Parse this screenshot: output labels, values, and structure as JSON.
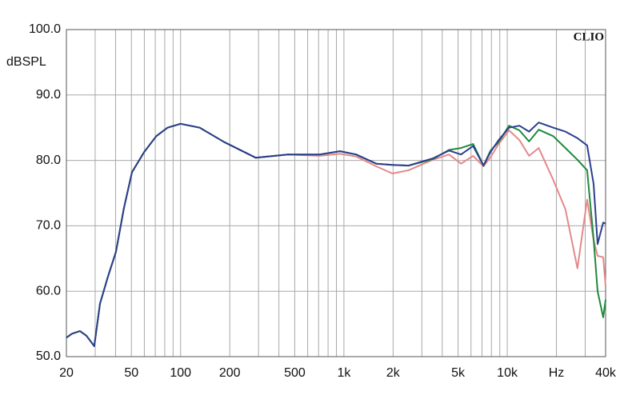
{
  "chart_data": {
    "type": "line",
    "annotation": "CLIO",
    "ylabel": "dBSPL",
    "log_x": true,
    "grid": true,
    "x": [
      20,
      21.6,
      24.2,
      26.5,
      29.6,
      32.1,
      36,
      40.2,
      45,
      50.4,
      59.9,
      71,
      83.2,
      100,
      131,
      185,
      289,
      453,
      711,
      946,
      1187,
      1577,
      1980,
      2486,
      3500,
      4394,
      5211,
      6180,
      7160,
      7900,
      8860,
      10260,
      11880,
      13600,
      15580,
      19140,
      22700,
      26900,
      30820,
      33760,
      35730,
      38660,
      40000
    ],
    "series": [
      {
        "color": "#e4898a",
        "values": [
          52.9,
          53.5,
          53.9,
          53.2,
          51.6,
          58.1,
          62.3,
          66,
          72.7,
          78.2,
          81.3,
          83.7,
          85,
          85.6,
          85,
          82.8,
          80.4,
          80.9,
          80.7,
          81,
          80.6,
          79.1,
          78,
          78.5,
          80.1,
          80.9,
          79.5,
          80.7,
          79.1,
          80.5,
          82.5,
          84.6,
          83.1,
          80.7,
          81.9,
          77,
          72.5,
          63.5,
          74,
          67.8,
          65.4,
          65.2,
          60.8
        ]
      },
      {
        "color": "#1e8a3c",
        "values": [
          52.9,
          53.5,
          53.9,
          53.2,
          51.6,
          58.1,
          62.3,
          66,
          72.7,
          78.2,
          81.3,
          83.7,
          85,
          85.6,
          85,
          82.8,
          80.4,
          80.9,
          80.9,
          81.4,
          80.9,
          79.5,
          79.3,
          79.2,
          80.2,
          81.6,
          81.9,
          82.5,
          79.2,
          81.5,
          82.8,
          85.3,
          84.6,
          82.9,
          84.7,
          83.7,
          81.9,
          80.1,
          78.5,
          68,
          60,
          56,
          58.7
        ]
      },
      {
        "color": "#2b3f8e",
        "values": [
          52.9,
          53.5,
          53.9,
          53.2,
          51.6,
          58.1,
          62.3,
          66,
          72.7,
          78.2,
          81.3,
          83.7,
          85,
          85.6,
          85,
          82.8,
          80.4,
          80.9,
          80.9,
          81.4,
          80.9,
          79.5,
          79.3,
          79.2,
          80.3,
          81.5,
          80.9,
          82.2,
          79.2,
          81.3,
          83.1,
          85,
          85.3,
          84.4,
          85.8,
          85,
          84.4,
          83.4,
          82.3,
          76.4,
          67.2,
          70.5,
          70.3
        ]
      }
    ],
    "xlim": [
      20,
      40000
    ],
    "xticks": [
      20,
      50,
      100,
      200,
      500,
      {
        "value": 1000,
        "label": "1k"
      },
      {
        "value": 2000,
        "label": "2k"
      },
      {
        "value": 5000,
        "label": "5k"
      },
      {
        "value": 10000,
        "label": "10k"
      },
      {
        "value": 20000,
        "label": "Hz"
      },
      {
        "value": 40000,
        "label": "40k"
      }
    ],
    "xminorticks": [
      30,
      40,
      60,
      70,
      80,
      90,
      300,
      400,
      600,
      700,
      800,
      900,
      3000,
      4000,
      6000,
      7000,
      8000,
      9000,
      30000
    ],
    "ylim": [
      50,
      100
    ],
    "yticks": [
      {
        "value": 50,
        "label": "50.0"
      },
      {
        "value": 60,
        "label": "60.0"
      },
      {
        "value": 70,
        "label": "70.0"
      },
      {
        "value": 80,
        "label": "80.0"
      },
      {
        "value": 90,
        "label": "90.0"
      },
      {
        "value": 100,
        "label": "100.0"
      }
    ]
  }
}
